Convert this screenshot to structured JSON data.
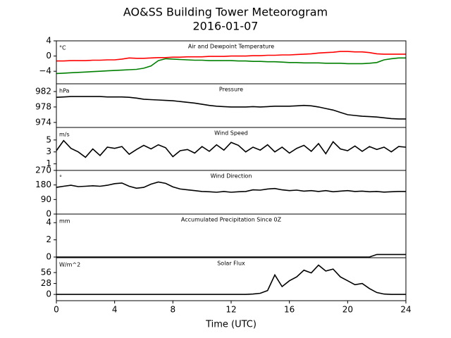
{
  "chart_data": [
    {
      "type": "line",
      "title": "AO&SS Building Tower Meteorogram",
      "subtitle": "2016-01-07",
      "unit": "°C",
      "label": "Air and Dewpoint Temperature",
      "x": [
        0,
        0.5,
        1,
        1.5,
        2,
        2.5,
        3,
        3.5,
        4,
        4.5,
        5,
        5.5,
        6,
        6.5,
        7,
        7.5,
        8,
        8.5,
        9,
        9.5,
        10,
        10.5,
        11,
        11.5,
        12,
        12.5,
        13,
        13.5,
        14,
        14.5,
        15,
        15.5,
        16,
        16.5,
        17,
        17.5,
        18,
        18.5,
        19,
        19.5,
        20,
        20.5,
        21,
        21.5,
        22,
        22.5,
        23,
        23.5,
        24
      ],
      "series": [
        {
          "color": "#ff0000",
          "values": [
            -1.3,
            -1.3,
            -1.2,
            -1.2,
            -1.2,
            -1.1,
            -1.1,
            -1.0,
            -1.0,
            -0.8,
            -0.5,
            -0.6,
            -0.6,
            -0.5,
            -0.4,
            -0.4,
            -0.3,
            -0.3,
            -0.2,
            -0.2,
            -0.2,
            -0.1,
            -0.1,
            -0.1,
            0,
            0,
            0,
            0.1,
            0.1,
            0.2,
            0.2,
            0.3,
            0.3,
            0.4,
            0.5,
            0.6,
            0.8,
            0.9,
            1.0,
            1.2,
            1.2,
            1.1,
            1.1,
            0.9,
            0.6,
            0.5,
            0.5,
            0.5,
            0.5
          ]
        },
        {
          "color": "#008000",
          "values": [
            -4.6,
            -4.5,
            -4.4,
            -4.3,
            -4.2,
            -4.1,
            -4.0,
            -3.9,
            -3.8,
            -3.7,
            -3.6,
            -3.5,
            -3.2,
            -2.6,
            -1.2,
            -0.7,
            -0.8,
            -0.9,
            -1.0,
            -1.1,
            -1.1,
            -1.2,
            -1.2,
            -1.2,
            -1.2,
            -1.3,
            -1.3,
            -1.4,
            -1.4,
            -1.5,
            -1.5,
            -1.6,
            -1.7,
            -1.7,
            -1.8,
            -1.8,
            -1.8,
            -1.9,
            -1.9,
            -1.9,
            -2.0,
            -2.0,
            -2.0,
            -1.9,
            -1.7,
            -1.0,
            -0.7,
            -0.5,
            -0.5
          ]
        }
      ],
      "ylim": [
        -7.3,
        4
      ],
      "yticks": [
        4,
        0,
        {
          "value": -4,
          "label": "−4"
        }
      ],
      "xlim": [
        0,
        24
      ]
    },
    {
      "type": "line",
      "unit": "hPa",
      "label": "Pressure",
      "x": [
        0,
        0.5,
        1,
        1.5,
        2,
        2.5,
        3,
        3.5,
        4,
        4.5,
        5,
        5.5,
        6,
        6.5,
        7,
        7.5,
        8,
        8.5,
        9,
        9.5,
        10,
        10.5,
        11,
        11.5,
        12,
        12.5,
        13,
        13.5,
        14,
        14.5,
        15,
        15.5,
        16,
        16.5,
        17,
        17.5,
        18,
        18.5,
        19,
        19.5,
        20,
        20.5,
        21,
        21.5,
        22,
        22.5,
        23,
        23.5,
        24
      ],
      "series": [
        {
          "color": "#000000",
          "values": [
            980.5,
            980.6,
            980.7,
            980.7,
            980.7,
            980.7,
            980.7,
            980.6,
            980.6,
            980.6,
            980.5,
            980.3,
            980.0,
            979.9,
            979.8,
            979.7,
            979.6,
            979.4,
            979.2,
            979.0,
            978.7,
            978.4,
            978.2,
            978.1,
            978.0,
            978.0,
            978.0,
            978.1,
            978.0,
            978.1,
            978.2,
            978.2,
            978.2,
            978.3,
            978.4,
            978.3,
            978.0,
            977.6,
            977.2,
            976.6,
            976.0,
            975.8,
            975.6,
            975.5,
            975.4,
            975.2,
            975.0,
            974.9,
            974.9
          ]
        }
      ],
      "ylim": [
        972.7,
        984
      ],
      "yticks": [
        982,
        978,
        974
      ],
      "xlim": [
        0,
        24
      ]
    },
    {
      "type": "line",
      "unit": "m/s",
      "label": "Wind Speed",
      "x": [
        0,
        0.5,
        1,
        1.5,
        2,
        2.5,
        3,
        3.5,
        4,
        4.5,
        5,
        5.5,
        6,
        6.5,
        7,
        7.5,
        8,
        8.5,
        9,
        9.5,
        10,
        10.5,
        11,
        11.5,
        12,
        12.5,
        13,
        13.5,
        14,
        14.5,
        15,
        15.5,
        16,
        16.5,
        17,
        17.5,
        18,
        18.5,
        19,
        19.5,
        20,
        20.5,
        21,
        21.5,
        22,
        22.5,
        23,
        23.5,
        24
      ],
      "series": [
        {
          "color": "#000000",
          "values": [
            3.2,
            4.9,
            3.6,
            3.0,
            2.1,
            3.5,
            2.4,
            3.8,
            3.6,
            3.9,
            2.6,
            3.4,
            4.1,
            3.5,
            4.2,
            3.7,
            2.2,
            3.2,
            3.4,
            2.8,
            3.9,
            3.1,
            4.2,
            3.3,
            4.6,
            4.1,
            3.0,
            3.8,
            3.3,
            4.2,
            3.0,
            3.8,
            2.8,
            3.6,
            4.1,
            3.1,
            4.4,
            2.7,
            4.7,
            3.5,
            3.2,
            4.0,
            3.1,
            3.9,
            3.4,
            3.8,
            3.0,
            3.9,
            3.8
          ]
        }
      ],
      "ylim": [
        -0.1,
        7.1
      ],
      "yticks": [
        5,
        3,
        1
      ],
      "xlim": [
        0,
        24
      ]
    },
    {
      "type": "line",
      "unit": "°",
      "label": "Wind Direction",
      "x": [
        0,
        0.5,
        1,
        1.5,
        2,
        2.5,
        3,
        3.5,
        4,
        4.5,
        5,
        5.5,
        6,
        6.5,
        7,
        7.5,
        8,
        8.5,
        9,
        9.5,
        10,
        10.5,
        11,
        11.5,
        12,
        12.5,
        13,
        13.5,
        14,
        14.5,
        15,
        15.5,
        16,
        16.5,
        17,
        17.5,
        18,
        18.5,
        19,
        19.5,
        20,
        20.5,
        21,
        21.5,
        22,
        22.5,
        23,
        23.5,
        24
      ],
      "series": [
        {
          "color": "#000000",
          "values": [
            165,
            172,
            178,
            170,
            172,
            175,
            172,
            178,
            188,
            192,
            172,
            160,
            165,
            185,
            198,
            190,
            168,
            155,
            150,
            145,
            140,
            138,
            135,
            140,
            135,
            138,
            140,
            150,
            148,
            155,
            158,
            150,
            145,
            148,
            142,
            145,
            140,
            145,
            138,
            142,
            145,
            140,
            142,
            138,
            140,
            136,
            138,
            140,
            140
          ]
        }
      ],
      "ylim": [
        0,
        270
      ],
      "yticks": [
        0,
        90,
        180,
        270
      ],
      "xlim": [
        0,
        24
      ]
    },
    {
      "type": "line",
      "unit": "mm",
      "label": "Accumulated Precipitation Since 0Z",
      "x": [
        0,
        0.5,
        1,
        1.5,
        2,
        2.5,
        3,
        3.5,
        4,
        4.5,
        5,
        5.5,
        6,
        6.5,
        7,
        7.5,
        8,
        8.5,
        9,
        9.5,
        10,
        10.5,
        11,
        11.5,
        12,
        12.5,
        13,
        13.5,
        14,
        14.5,
        15,
        15.5,
        16,
        16.5,
        17,
        17.5,
        18,
        18.5,
        19,
        19.5,
        20,
        20.5,
        21,
        21.5,
        22,
        22.5,
        23,
        23.5,
        24
      ],
      "series": [
        {
          "color": "#000000",
          "values": [
            0,
            0,
            0,
            0,
            0,
            0,
            0,
            0,
            0,
            0,
            0,
            0,
            0,
            0,
            0,
            0,
            0,
            0,
            0,
            0,
            0,
            0,
            0,
            0,
            0,
            0,
            0,
            0,
            0,
            0,
            0,
            0,
            0,
            0,
            0,
            0,
            0,
            0,
            0,
            0,
            0,
            0,
            0,
            0,
            0.3,
            0.3,
            0.3,
            0.3,
            0.3
          ]
        }
      ],
      "ylim": [
        -0.08,
        5
      ],
      "yticks": [
        0,
        2,
        4
      ],
      "xlim": [
        0,
        24
      ]
    },
    {
      "type": "line",
      "unit": "W/m^2",
      "label": "Solar Flux",
      "xlabel": "Time (UTC)",
      "x": [
        0,
        0.5,
        1,
        1.5,
        2,
        2.5,
        3,
        3.5,
        4,
        4.5,
        5,
        5.5,
        6,
        6.5,
        7,
        7.5,
        8,
        8.5,
        9,
        9.5,
        10,
        10.5,
        11,
        11.5,
        12,
        12.5,
        13,
        13.5,
        14,
        14.5,
        15,
        15.5,
        16,
        16.5,
        17,
        17.5,
        18,
        18.5,
        19,
        19.5,
        20,
        20.5,
        21,
        21.5,
        22,
        22.5,
        23,
        23.5,
        24
      ],
      "series": [
        {
          "color": "#000000",
          "values": [
            0,
            0,
            0,
            0,
            0,
            0,
            0,
            0,
            0,
            0,
            0,
            0,
            0,
            0,
            0,
            0,
            0,
            0,
            0,
            0,
            0,
            0,
            0,
            0,
            0,
            0,
            0,
            1,
            3,
            10,
            50,
            20,
            35,
            45,
            62,
            55,
            75,
            60,
            65,
            45,
            35,
            25,
            28,
            15,
            5,
            1,
            0,
            0,
            0
          ]
        }
      ],
      "ylim": [
        -16,
        94
      ],
      "yticks": [
        0,
        28,
        56
      ],
      "xlim": [
        0,
        24
      ],
      "xticks": [
        0,
        4,
        8,
        12,
        16,
        20,
        24
      ]
    }
  ]
}
